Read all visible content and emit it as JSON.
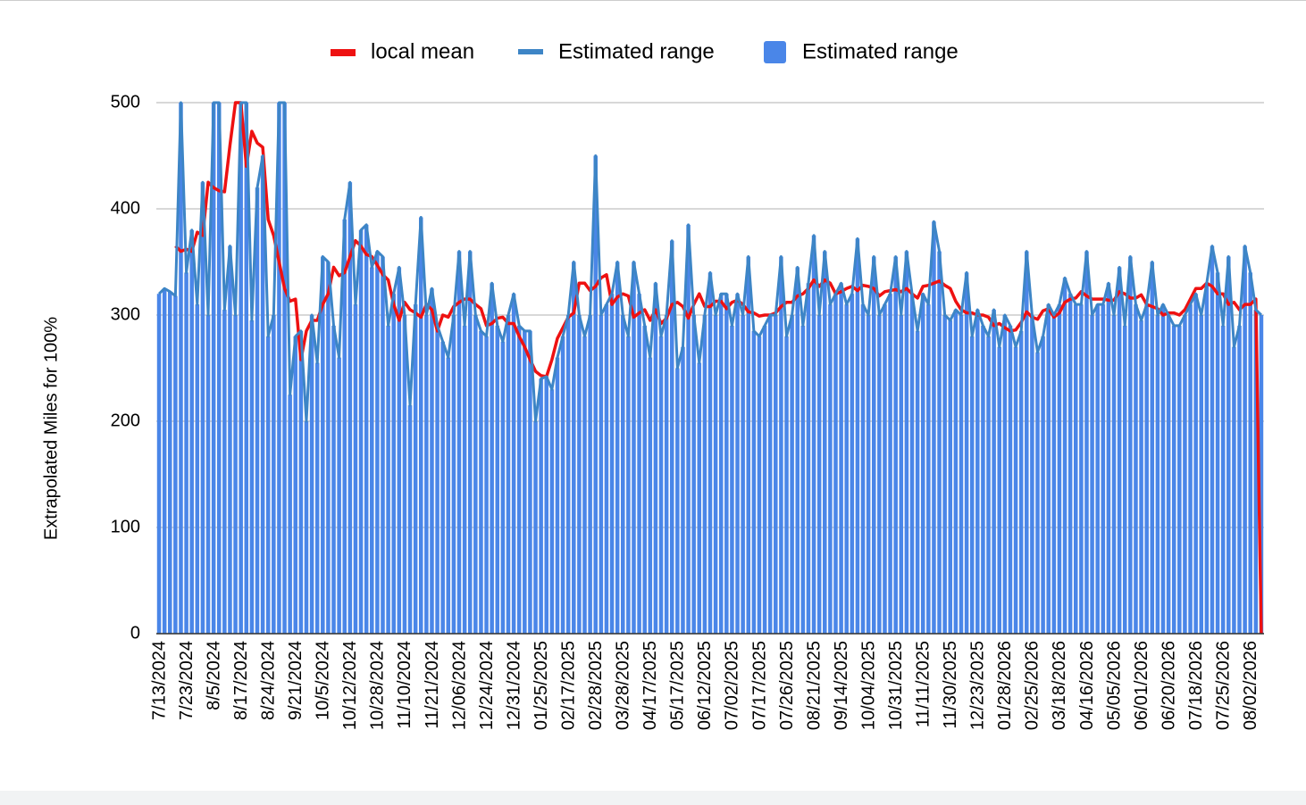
{
  "chart_data": {
    "type": "bar",
    "y_label": "Extrapolated Miles for 100%",
    "ylim": [
      0,
      500
    ],
    "yticks": [
      0,
      100,
      200,
      300,
      400,
      500
    ],
    "grid": true,
    "categories": [
      "7/13/2024",
      null,
      null,
      null,
      null,
      "7/23/2024",
      null,
      null,
      null,
      null,
      "8/5/2024",
      null,
      null,
      null,
      null,
      "8/17/2024",
      null,
      null,
      null,
      null,
      "8/24/2024",
      null,
      null,
      null,
      null,
      "9/21/2024",
      null,
      null,
      null,
      null,
      "10/5/2024",
      null,
      null,
      null,
      null,
      "10/12/2024",
      null,
      null,
      null,
      null,
      "10/28/2024",
      null,
      null,
      null,
      null,
      "11/10/2024",
      null,
      null,
      null,
      null,
      "11/21/2024",
      null,
      null,
      null,
      null,
      "12/06/2024",
      null,
      null,
      null,
      null,
      "12/24/2024",
      null,
      null,
      null,
      null,
      "12/31/2024",
      null,
      null,
      null,
      null,
      "01/25/2025",
      null,
      null,
      null,
      null,
      "02/17/2025",
      null,
      null,
      null,
      null,
      "02/28/2025",
      null,
      null,
      null,
      null,
      "03/28/2025",
      null,
      null,
      null,
      null,
      "04/17/2025",
      null,
      null,
      null,
      null,
      "05/17/2025",
      null,
      null,
      null,
      null,
      "06/12/2025",
      null,
      null,
      null,
      null,
      "07/02/2025",
      null,
      null,
      null,
      null,
      "07/17/2025",
      null,
      null,
      null,
      null,
      "07/26/2025",
      null,
      null,
      null,
      null,
      "08/21/2025",
      null,
      null,
      null,
      null,
      "09/14/2025",
      null,
      null,
      null,
      null,
      "10/04/2025",
      null,
      null,
      null,
      null,
      "10/31/2025",
      null,
      null,
      null,
      null,
      "11/11/2025",
      null,
      null,
      null,
      null,
      "11/30/2025",
      null,
      null,
      null,
      null,
      "12/23/2025",
      null,
      null,
      null,
      null,
      "01/28/2026",
      null,
      null,
      null,
      null,
      "02/25/2026",
      null,
      null,
      null,
      null,
      "03/18/2026",
      null,
      null,
      null,
      null,
      "04/16/2026",
      null,
      null,
      null,
      null,
      "05/05/2026",
      null,
      null,
      null,
      null,
      "06/01/2026",
      null,
      null,
      null,
      null,
      "06/20/2026",
      null,
      null,
      null,
      null,
      "07/18/2026",
      null,
      null,
      null,
      null,
      "07/25/2026",
      null,
      null,
      null,
      null,
      "08/02/2026",
      null,
      null
    ],
    "series": [
      {
        "name": "local mean",
        "kind": "line",
        "color": "#ee1111",
        "values": [
          null,
          null,
          null,
          365,
          360,
          362,
          360,
          378,
          375,
          425,
          420,
          417,
          416,
          460,
          500,
          500,
          440,
          473,
          462,
          458,
          390,
          375,
          350,
          325,
          313,
          315,
          258,
          285,
          295,
          295,
          310,
          320,
          345,
          337,
          340,
          355,
          370,
          365,
          357,
          355,
          347,
          338,
          333,
          310,
          295,
          312,
          305,
          302,
          298,
          310,
          305,
          285,
          300,
          298,
          308,
          312,
          315,
          315,
          310,
          306,
          290,
          292,
          297,
          298,
          292,
          292,
          280,
          270,
          258,
          247,
          243,
          242,
          258,
          278,
          288,
          298,
          302,
          330,
          330,
          323,
          327,
          335,
          338,
          310,
          317,
          320,
          318,
          298,
          302,
          305,
          295,
          305,
          292,
          297,
          310,
          312,
          308,
          297,
          310,
          320,
          308,
          308,
          313,
          313,
          306,
          312,
          314,
          310,
          303,
          302,
          299,
          300,
          300,
          302,
          308,
          312,
          312,
          318,
          320,
          325,
          333,
          327,
          333,
          330,
          320,
          322,
          325,
          327,
          323,
          328,
          327,
          325,
          318,
          322,
          323,
          324,
          322,
          325,
          320,
          316,
          327,
          328,
          330,
          332,
          328,
          325,
          313,
          305,
          302,
          302,
          300,
          300,
          298,
          290,
          292,
          288,
          285,
          286,
          293,
          303,
          298,
          296,
          304,
          306,
          298,
          302,
          312,
          315,
          316,
          322,
          318,
          315,
          315,
          315,
          314,
          314,
          322,
          320,
          316,
          316,
          319,
          310,
          308,
          306,
          300,
          302,
          302,
          300,
          305,
          315,
          325,
          325,
          330,
          327,
          320,
          320,
          310,
          312,
          305,
          310,
          310,
          315,
          0
        ]
      },
      {
        "name": "Estimated range",
        "kind": "line",
        "color": "#3d85c6",
        "values": [
          320,
          325,
          322,
          318,
          500,
          340,
          380,
          310,
          425,
          300,
          500,
          500,
          305,
          365,
          300,
          500,
          500,
          295,
          420,
          450,
          280,
          300,
          500,
          500,
          225,
          280,
          285,
          200,
          300,
          255,
          355,
          350,
          290,
          260,
          390,
          425,
          310,
          380,
          385,
          345,
          360,
          355,
          290,
          320,
          345,
          300,
          215,
          310,
          392,
          300,
          325,
          290,
          275,
          260,
          300,
          360,
          290,
          360,
          300,
          285,
          280,
          330,
          290,
          275,
          300,
          320,
          290,
          285,
          285,
          200,
          240,
          242,
          230,
          260,
          280,
          300,
          350,
          300,
          280,
          300,
          450,
          300,
          310,
          320,
          350,
          300,
          280,
          350,
          320,
          290,
          260,
          330,
          280,
          300,
          370,
          250,
          270,
          385,
          300,
          255,
          300,
          340,
          300,
          320,
          320,
          290,
          320,
          300,
          355,
          285,
          280,
          290,
          300,
          300,
          355,
          280,
          300,
          345,
          290,
          330,
          375,
          300,
          360,
          310,
          320,
          330,
          310,
          320,
          372,
          310,
          300,
          355,
          300,
          310,
          320,
          355,
          300,
          360,
          320,
          285,
          320,
          310,
          388,
          360,
          300,
          295,
          305,
          300,
          340,
          280,
          305,
          290,
          280,
          305,
          270,
          300,
          290,
          270,
          285,
          360,
          300,
          265,
          280,
          310,
          300,
          310,
          335,
          320,
          310,
          310,
          360,
          300,
          310,
          310,
          330,
          300,
          345,
          290,
          355,
          310,
          295,
          310,
          350,
          300,
          310,
          300,
          290,
          290,
          300,
          310,
          320,
          300,
          330,
          365,
          340,
          290,
          355,
          270,
          290,
          365,
          340,
          305,
          300
        ]
      },
      {
        "name": "Estimated range",
        "kind": "bar",
        "color": "#4a86e8",
        "values": [
          320,
          325,
          322,
          318,
          500,
          340,
          380,
          310,
          425,
          300,
          500,
          500,
          305,
          365,
          300,
          500,
          500,
          295,
          420,
          450,
          280,
          300,
          500,
          500,
          225,
          280,
          285,
          200,
          300,
          255,
          355,
          350,
          290,
          260,
          390,
          425,
          310,
          380,
          385,
          345,
          360,
          355,
          290,
          320,
          345,
          300,
          215,
          310,
          392,
          300,
          325,
          290,
          275,
          260,
          300,
          360,
          290,
          360,
          300,
          285,
          280,
          330,
          290,
          275,
          300,
          320,
          290,
          285,
          285,
          200,
          240,
          242,
          230,
          260,
          280,
          300,
          350,
          300,
          280,
          300,
          450,
          300,
          310,
          320,
          350,
          300,
          280,
          350,
          320,
          290,
          260,
          330,
          280,
          300,
          370,
          250,
          270,
          385,
          300,
          255,
          300,
          340,
          300,
          320,
          320,
          290,
          320,
          300,
          355,
          285,
          280,
          290,
          300,
          300,
          355,
          280,
          300,
          345,
          290,
          330,
          375,
          300,
          360,
          310,
          320,
          330,
          310,
          320,
          372,
          310,
          300,
          355,
          300,
          310,
          320,
          355,
          300,
          360,
          320,
          285,
          320,
          310,
          388,
          360,
          300,
          295,
          305,
          300,
          340,
          280,
          305,
          290,
          280,
          305,
          270,
          300,
          290,
          270,
          285,
          360,
          300,
          265,
          280,
          310,
          300,
          310,
          335,
          320,
          310,
          310,
          360,
          300,
          310,
          310,
          330,
          300,
          345,
          290,
          355,
          310,
          295,
          310,
          350,
          300,
          310,
          300,
          290,
          290,
          300,
          310,
          320,
          300,
          330,
          365,
          340,
          290,
          355,
          270,
          290,
          365,
          340,
          305,
          300
        ]
      }
    ]
  }
}
